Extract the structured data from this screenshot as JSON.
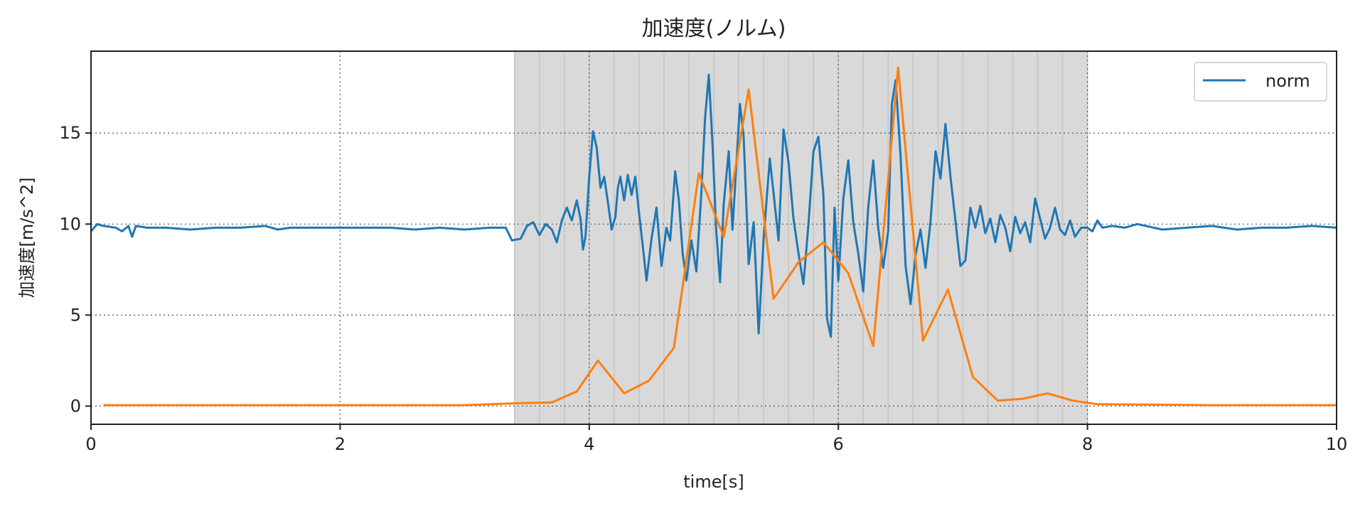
{
  "chart_data": {
    "type": "line",
    "title": "加速度(ノルム)",
    "xlabel": "time[s]",
    "ylabel": "加速度[m/s^2]",
    "xlim": [
      0,
      10
    ],
    "ylim": [
      -1,
      19.5
    ],
    "x_ticks": [
      0,
      2,
      4,
      6,
      8,
      10
    ],
    "y_ticks": [
      0,
      5,
      10,
      15
    ],
    "x_tick_labels": [
      "0",
      "2",
      "4",
      "6",
      "8",
      "10"
    ],
    "y_tick_labels": [
      "0",
      "5",
      "10",
      "15"
    ],
    "grid": true,
    "grid_style": "dotted",
    "legend_position": "top-right",
    "shaded_region": {
      "x_start": 3.4,
      "x_end": 8.0,
      "bands": [
        3.4,
        3.6,
        3.8,
        4.0,
        4.2,
        4.4,
        4.6,
        4.8,
        5.0,
        5.2,
        5.4,
        5.6,
        5.8,
        6.0,
        6.2,
        6.4,
        6.6,
        6.8,
        7.0,
        7.2,
        7.4,
        7.6,
        7.8,
        8.0
      ],
      "color": "#d9d9d9"
    },
    "colors": {
      "norm": "#1f77b4",
      "orange": "#ff7f0e"
    },
    "series": [
      {
        "name": "norm",
        "color": "#1f77b4",
        "points": [
          [
            0.0,
            9.6
          ],
          [
            0.05,
            10.0
          ],
          [
            0.1,
            9.9
          ],
          [
            0.2,
            9.8
          ],
          [
            0.25,
            9.6
          ],
          [
            0.3,
            9.9
          ],
          [
            0.33,
            9.3
          ],
          [
            0.36,
            9.9
          ],
          [
            0.45,
            9.8
          ],
          [
            0.6,
            9.8
          ],
          [
            0.8,
            9.7
          ],
          [
            1.0,
            9.8
          ],
          [
            1.2,
            9.8
          ],
          [
            1.4,
            9.9
          ],
          [
            1.5,
            9.7
          ],
          [
            1.6,
            9.8
          ],
          [
            1.8,
            9.8
          ],
          [
            2.0,
            9.8
          ],
          [
            2.2,
            9.8
          ],
          [
            2.4,
            9.8
          ],
          [
            2.6,
            9.7
          ],
          [
            2.8,
            9.8
          ],
          [
            3.0,
            9.7
          ],
          [
            3.2,
            9.8
          ],
          [
            3.33,
            9.8
          ],
          [
            3.38,
            9.1
          ],
          [
            3.45,
            9.2
          ],
          [
            3.5,
            9.9
          ],
          [
            3.55,
            10.1
          ],
          [
            3.6,
            9.4
          ],
          [
            3.65,
            10.0
          ],
          [
            3.7,
            9.7
          ],
          [
            3.74,
            9.0
          ],
          [
            3.78,
            10.2
          ],
          [
            3.82,
            10.9
          ],
          [
            3.86,
            10.2
          ],
          [
            3.9,
            11.3
          ],
          [
            3.93,
            10.3
          ],
          [
            3.95,
            8.6
          ],
          [
            3.97,
            9.3
          ],
          [
            4.0,
            12.6
          ],
          [
            4.03,
            15.1
          ],
          [
            4.06,
            14.2
          ],
          [
            4.09,
            12.0
          ],
          [
            4.12,
            12.6
          ],
          [
            4.15,
            11.2
          ],
          [
            4.18,
            9.7
          ],
          [
            4.21,
            10.4
          ],
          [
            4.23,
            12.0
          ],
          [
            4.25,
            12.6
          ],
          [
            4.28,
            11.3
          ],
          [
            4.31,
            12.7
          ],
          [
            4.34,
            11.6
          ],
          [
            4.37,
            12.6
          ],
          [
            4.4,
            10.6
          ],
          [
            4.43,
            8.8
          ],
          [
            4.46,
            6.9
          ],
          [
            4.5,
            9.2
          ],
          [
            4.54,
            10.9
          ],
          [
            4.58,
            7.7
          ],
          [
            4.62,
            9.8
          ],
          [
            4.65,
            9.1
          ],
          [
            4.69,
            12.9
          ],
          [
            4.72,
            11.3
          ],
          [
            4.75,
            8.4
          ],
          [
            4.78,
            6.9
          ],
          [
            4.82,
            9.1
          ],
          [
            4.86,
            7.4
          ],
          [
            4.9,
            11.7
          ],
          [
            4.93,
            15.8
          ],
          [
            4.96,
            18.2
          ],
          [
            4.99,
            14.4
          ],
          [
            5.02,
            9.6
          ],
          [
            5.05,
            6.8
          ],
          [
            5.08,
            11.1
          ],
          [
            5.12,
            14.0
          ],
          [
            5.15,
            9.7
          ],
          [
            5.18,
            13.1
          ],
          [
            5.21,
            16.6
          ],
          [
            5.24,
            14.8
          ],
          [
            5.28,
            7.8
          ],
          [
            5.32,
            10.1
          ],
          [
            5.36,
            4.0
          ],
          [
            5.4,
            9.2
          ],
          [
            5.45,
            13.6
          ],
          [
            5.48,
            11.7
          ],
          [
            5.52,
            9.1
          ],
          [
            5.56,
            15.2
          ],
          [
            5.6,
            13.4
          ],
          [
            5.64,
            10.3
          ],
          [
            5.68,
            8.4
          ],
          [
            5.72,
            6.7
          ],
          [
            5.76,
            10.0
          ],
          [
            5.8,
            14.0
          ],
          [
            5.84,
            14.8
          ],
          [
            5.88,
            11.6
          ],
          [
            5.91,
            4.8
          ],
          [
            5.94,
            3.8
          ],
          [
            5.97,
            10.9
          ],
          [
            6.0,
            6.9
          ],
          [
            6.04,
            11.4
          ],
          [
            6.08,
            13.5
          ],
          [
            6.12,
            10.1
          ],
          [
            6.16,
            8.4
          ],
          [
            6.2,
            6.3
          ],
          [
            6.24,
            10.9
          ],
          [
            6.28,
            13.5
          ],
          [
            6.32,
            9.8
          ],
          [
            6.36,
            7.6
          ],
          [
            6.4,
            9.6
          ],
          [
            6.43,
            16.6
          ],
          [
            6.46,
            17.9
          ],
          [
            6.5,
            13.7
          ],
          [
            6.54,
            7.7
          ],
          [
            6.58,
            5.6
          ],
          [
            6.62,
            8.3
          ],
          [
            6.66,
            9.7
          ],
          [
            6.7,
            7.6
          ],
          [
            6.74,
            10.1
          ],
          [
            6.78,
            14.0
          ],
          [
            6.82,
            12.5
          ],
          [
            6.86,
            15.5
          ],
          [
            6.9,
            12.6
          ],
          [
            6.94,
            10.2
          ],
          [
            6.98,
            7.7
          ],
          [
            7.02,
            8.0
          ],
          [
            7.06,
            10.9
          ],
          [
            7.1,
            9.8
          ],
          [
            7.14,
            11.0
          ],
          [
            7.18,
            9.5
          ],
          [
            7.22,
            10.3
          ],
          [
            7.26,
            9.0
          ],
          [
            7.3,
            10.5
          ],
          [
            7.34,
            9.8
          ],
          [
            7.38,
            8.5
          ],
          [
            7.42,
            10.4
          ],
          [
            7.46,
            9.5
          ],
          [
            7.5,
            10.1
          ],
          [
            7.54,
            9.0
          ],
          [
            7.58,
            11.4
          ],
          [
            7.62,
            10.3
          ],
          [
            7.66,
            9.2
          ],
          [
            7.7,
            9.8
          ],
          [
            7.74,
            10.9
          ],
          [
            7.78,
            9.7
          ],
          [
            7.82,
            9.4
          ],
          [
            7.86,
            10.2
          ],
          [
            7.9,
            9.3
          ],
          [
            7.95,
            9.8
          ],
          [
            8.0,
            9.8
          ],
          [
            8.04,
            9.6
          ],
          [
            8.08,
            10.2
          ],
          [
            8.12,
            9.8
          ],
          [
            8.2,
            9.9
          ],
          [
            8.3,
            9.8
          ],
          [
            8.4,
            10.0
          ],
          [
            8.6,
            9.7
          ],
          [
            8.8,
            9.8
          ],
          [
            9.0,
            9.9
          ],
          [
            9.2,
            9.7
          ],
          [
            9.4,
            9.8
          ],
          [
            9.6,
            9.8
          ],
          [
            9.8,
            9.9
          ],
          [
            10.0,
            9.8
          ]
        ]
      },
      {
        "name": "",
        "color": "#ff7f0e",
        "points": [
          [
            0.1,
            0.05
          ],
          [
            1.0,
            0.05
          ],
          [
            2.0,
            0.05
          ],
          [
            3.0,
            0.05
          ],
          [
            3.4,
            0.15
          ],
          [
            3.7,
            0.2
          ],
          [
            3.9,
            0.8
          ],
          [
            4.07,
            2.5
          ],
          [
            4.28,
            0.7
          ],
          [
            4.48,
            1.4
          ],
          [
            4.68,
            3.2
          ],
          [
            4.88,
            12.8
          ],
          [
            5.08,
            9.3
          ],
          [
            5.28,
            17.4
          ],
          [
            5.48,
            5.9
          ],
          [
            5.68,
            7.9
          ],
          [
            5.88,
            9.0
          ],
          [
            6.08,
            7.3
          ],
          [
            6.28,
            3.3
          ],
          [
            6.48,
            18.6
          ],
          [
            6.68,
            3.6
          ],
          [
            6.88,
            6.4
          ],
          [
            7.08,
            1.6
          ],
          [
            7.28,
            0.3
          ],
          [
            7.48,
            0.4
          ],
          [
            7.68,
            0.7
          ],
          [
            7.88,
            0.3
          ],
          [
            8.08,
            0.1
          ],
          [
            9.0,
            0.05
          ],
          [
            10.0,
            0.05
          ]
        ]
      }
    ]
  }
}
